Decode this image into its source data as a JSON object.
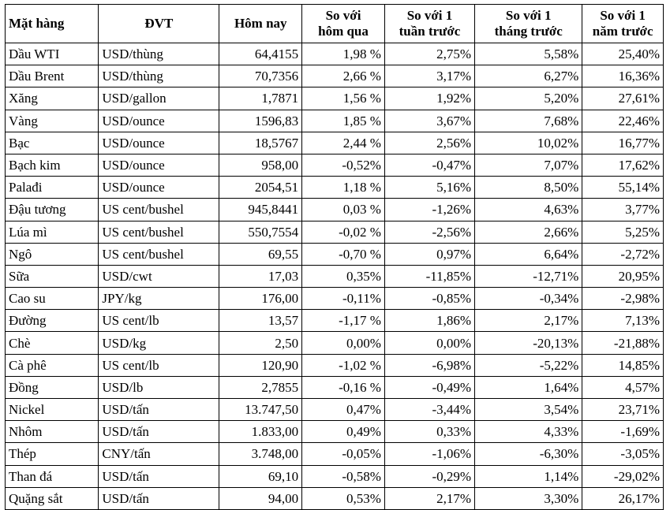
{
  "table": {
    "headers": [
      {
        "key": "name",
        "lines": [
          "Mặt hàng"
        ]
      },
      {
        "key": "unit",
        "lines": [
          "ĐVT"
        ]
      },
      {
        "key": "today",
        "lines": [
          "Hôm nay"
        ]
      },
      {
        "key": "vs_yesterday",
        "lines": [
          "So với",
          "hôm qua"
        ]
      },
      {
        "key": "vs_week",
        "lines": [
          "So với 1",
          "tuần trước"
        ]
      },
      {
        "key": "vs_month",
        "lines": [
          "So với 1",
          "tháng trước"
        ]
      },
      {
        "key": "vs_year",
        "lines": [
          "So với 1",
          "năm trước"
        ]
      }
    ],
    "rows": [
      {
        "name": "Dầu WTI",
        "unit": "USD/thùng",
        "today": "64,4155",
        "vs_yesterday": "1,98 %",
        "vs_week": "2,75%",
        "vs_month": "5,58%",
        "vs_year": "25,40%"
      },
      {
        "name": "Dầu Brent",
        "unit": "USD/thùng",
        "today": "70,7356",
        "vs_yesterday": "2,66 %",
        "vs_week": "3,17%",
        "vs_month": "6,27%",
        "vs_year": "16,36%"
      },
      {
        "name": "Xăng",
        "unit": "USD/gallon",
        "today": "1,7871",
        "vs_yesterday": "1,56 %",
        "vs_week": "1,92%",
        "vs_month": "5,20%",
        "vs_year": "27,61%"
      },
      {
        "name": "Vàng",
        "unit": "USD/ounce",
        "today": "1596,83",
        "vs_yesterday": "1,85 %",
        "vs_week": "3,67%",
        "vs_month": "7,68%",
        "vs_year": "22,46%"
      },
      {
        "name": "Bạc",
        "unit": "USD/ounce",
        "today": "18,5767",
        "vs_yesterday": "2,44 %",
        "vs_week": "2,56%",
        "vs_month": "10,02%",
        "vs_year": "16,77%"
      },
      {
        "name": "Bạch kim",
        "unit": "USD/ounce",
        "today": "958,00",
        "vs_yesterday": "-0,52%",
        "vs_week": "-0,47%",
        "vs_month": "7,07%",
        "vs_year": "17,62%"
      },
      {
        "name": "Palađi",
        "unit": "USD/ounce",
        "today": "2054,51",
        "vs_yesterday": "1,18 %",
        "vs_week": "5,16%",
        "vs_month": "8,50%",
        "vs_year": "55,14%"
      },
      {
        "name": "Đậu tương",
        "unit": "US cent/bushel",
        "today": "945,8441",
        "vs_yesterday": "0,03 %",
        "vs_week": "-1,26%",
        "vs_month": "4,63%",
        "vs_year": "3,77%"
      },
      {
        "name": "Lúa mì",
        "unit": "US cent/bushel",
        "today": "550,7554",
        "vs_yesterday": "-0,02 %",
        "vs_week": "-2,56%",
        "vs_month": "2,66%",
        "vs_year": "5,25%"
      },
      {
        "name": "Ngô",
        "unit": "US cent/bushel",
        "today": "69,55",
        "vs_yesterday": "-0,70 %",
        "vs_week": "0,97%",
        "vs_month": "6,64%",
        "vs_year": "-2,72%"
      },
      {
        "name": "Sữa",
        "unit": "USD/cwt",
        "today": "17,03",
        "vs_yesterday": "0,35%",
        "vs_week": "-11,85%",
        "vs_month": "-12,71%",
        "vs_year": "20,95%"
      },
      {
        "name": "Cao su",
        "unit": "JPY/kg",
        "today": "176,00",
        "vs_yesterday": "-0,11%",
        "vs_week": "-0,85%",
        "vs_month": "-0,34%",
        "vs_year": "-2,98%"
      },
      {
        "name": "Đường",
        "unit": "US cent/lb",
        "today": "13,57",
        "vs_yesterday": "-1,17 %",
        "vs_week": "1,86%",
        "vs_month": "2,17%",
        "vs_year": "7,13%"
      },
      {
        "name": "Chè",
        "unit": "USD/kg",
        "today": "2,50",
        "vs_yesterday": "0,00%",
        "vs_week": "0,00%",
        "vs_month": "-20,13%",
        "vs_year": "-21,88%"
      },
      {
        "name": "Cà phê",
        "unit": "US cent/lb",
        "today": "120,90",
        "vs_yesterday": "-1,02 %",
        "vs_week": "-6,98%",
        "vs_month": "-5,22%",
        "vs_year": "14,85%"
      },
      {
        "name": "Đồng",
        "unit": "USD/lb",
        "today": "2,7855",
        "vs_yesterday": "-0,16 %",
        "vs_week": "-0,49%",
        "vs_month": "1,64%",
        "vs_year": "4,57%"
      },
      {
        "name": "Nickel",
        "unit": "USD/tấn",
        "today": "13.747,50",
        "vs_yesterday": "0,47%",
        "vs_week": "-3,44%",
        "vs_month": "3,54%",
        "vs_year": "23,71%"
      },
      {
        "name": "Nhôm",
        "unit": "USD/tấn",
        "today": "1.833,00",
        "vs_yesterday": "0,49%",
        "vs_week": "0,33%",
        "vs_month": "4,33%",
        "vs_year": "-1,69%"
      },
      {
        "name": "Thép",
        "unit": "CNY/tấn",
        "today": "3.748,00",
        "vs_yesterday": "-0,05%",
        "vs_week": "-1,06%",
        "vs_month": "-6,30%",
        "vs_year": "-3,05%"
      },
      {
        "name": "Than đá",
        "unit": "USD/tấn",
        "today": "69,10",
        "vs_yesterday": "-0,58%",
        "vs_week": "-0,29%",
        "vs_month": "1,14%",
        "vs_year": "-29,02%"
      },
      {
        "name": "Quặng sắt",
        "unit": "USD/tấn",
        "today": "94,00",
        "vs_yesterday": "0,53%",
        "vs_week": "2,17%",
        "vs_month": "3,30%",
        "vs_year": "26,17%"
      }
    ]
  }
}
